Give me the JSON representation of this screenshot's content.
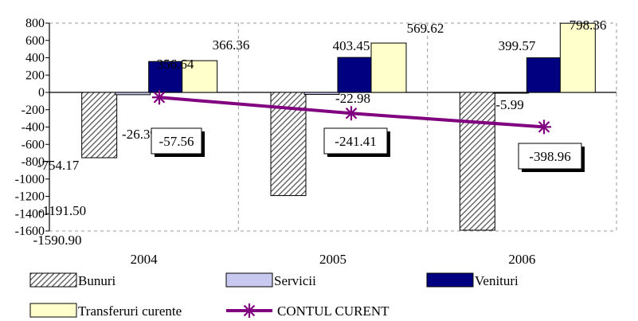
{
  "chart_data": {
    "type": "bar",
    "categories": [
      "2004",
      "2005",
      "2006"
    ],
    "series": [
      {
        "name": "Bunuri",
        "kind": "bar",
        "values": [
          -754.17,
          -1191.5,
          -1590.9
        ],
        "labels": [
          "-754.17",
          "-1191.50",
          "-1590.90"
        ],
        "color": "#b0b0b0",
        "pattern": "diagonal-hatch"
      },
      {
        "name": "Servicii",
        "kind": "bar",
        "values": [
          -26.39,
          -22.98,
          -5.99
        ],
        "labels": [
          "-26.39",
          "-22.98",
          "-5.99"
        ],
        "color": "#c8c8f0"
      },
      {
        "name": "Venituri",
        "kind": "bar",
        "values": [
          356.64,
          403.45,
          399.57
        ],
        "labels": [
          "356.64",
          "403.45",
          "399.57"
        ],
        "color": "#000080"
      },
      {
        "name": "Transferuri curente",
        "kind": "bar",
        "values": [
          366.36,
          569.62,
          798.36
        ],
        "labels": [
          "366.36",
          "569.62",
          "798.36"
        ],
        "color": "#ffffcc"
      },
      {
        "name": "CONTUL CURENT",
        "kind": "line",
        "values": [
          -57.56,
          -241.41,
          -398.96
        ],
        "labels": [
          "-57.56",
          "-241.41",
          "-398.96"
        ],
        "color": "#800080",
        "marker": "star"
      }
    ],
    "yticks": [
      "800",
      "600",
      "400",
      "200",
      "0",
      "-200",
      "-400",
      "-600",
      "-800",
      "-1000",
      "-1200",
      "-1400",
      "-1600"
    ],
    "ylim": [
      -1600,
      800
    ],
    "grid": "dashed",
    "legend_position": "bottom",
    "title": "",
    "xlabel": "",
    "ylabel": ""
  }
}
